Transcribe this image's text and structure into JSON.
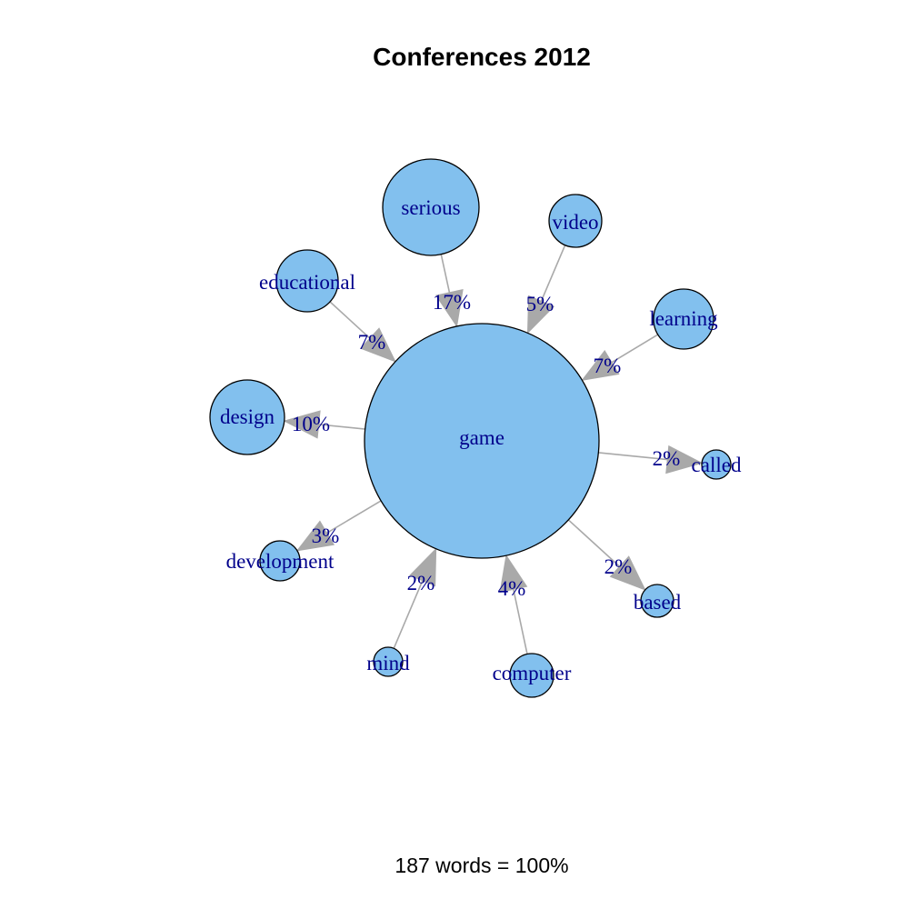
{
  "title": "Conferences 2012",
  "footer": "187 words = 100%",
  "colors": {
    "node_fill": "#82c0ee",
    "node_stroke": "#000000",
    "edge": "#a9a9a9",
    "label": "#00008b"
  },
  "center": {
    "id": "game",
    "label": "game"
  },
  "nodes": [
    {
      "id": "serious",
      "label": "serious",
      "edge_label": "17%",
      "direction": "in"
    },
    {
      "id": "video",
      "label": "video",
      "edge_label": "5%",
      "direction": "in"
    },
    {
      "id": "learning",
      "label": "learning",
      "edge_label": "7%",
      "direction": "in"
    },
    {
      "id": "called",
      "label": "called",
      "edge_label": "2%",
      "direction": "out"
    },
    {
      "id": "based",
      "label": "based",
      "edge_label": "2%",
      "direction": "out"
    },
    {
      "id": "computer",
      "label": "computer",
      "edge_label": "4%",
      "direction": "in"
    },
    {
      "id": "mind",
      "label": "mind",
      "edge_label": "2%",
      "direction": "in"
    },
    {
      "id": "development",
      "label": "development",
      "edge_label": "3%",
      "direction": "out"
    },
    {
      "id": "design",
      "label": "design",
      "edge_label": "10%",
      "direction": "out"
    },
    {
      "id": "educational",
      "label": "educational",
      "edge_label": "7%",
      "direction": "in"
    }
  ]
}
